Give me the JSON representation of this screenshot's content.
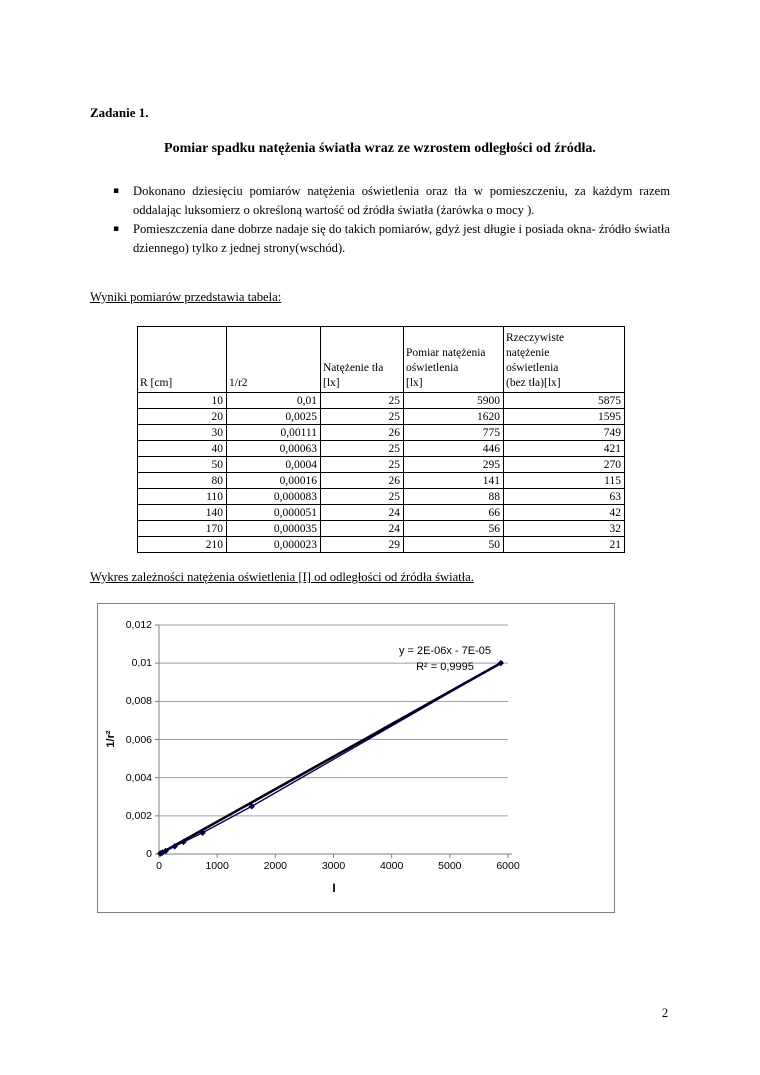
{
  "document": {
    "task_label": "Zadanie 1.",
    "title": "Pomiar spadku natężenia światła wraz ze wzrostem odległości od źródła.",
    "bullet_marker": "▪",
    "bullets": [
      "Dokonano dziesięciu pomiarów natężenia oświetlenia oraz tła w pomieszczeniu, za każdym razem oddalając luksomierz o określoną wartość od źródła światła (żarówka o mocy  ).",
      "Pomieszczenia dane dobrze nadaje się do takich pomiarów, gdyż jest długie i posiada okna- źródło światła dziennego) tylko z jednej strony(wschód)."
    ],
    "table_caption": "Wyniki pomiarów przedstawia tabela:",
    "chart_caption": "Wykres zależności natężenia oświetlenia [I] od odległości od źródła światła.",
    "page_number": "2"
  },
  "table": {
    "headers": [
      "R [cm]",
      "1/r2",
      "Natężenie tła\n[lx]",
      "Pomiar natężenia\noświetlenia\n[lx]",
      "Rzeczywiste\nnatężenie\noświetlenia\n(bez tła)[lx]"
    ],
    "rows": [
      [
        "10",
        "0,01",
        "25",
        "5900",
        "5875"
      ],
      [
        "20",
        "0,0025",
        "25",
        "1620",
        "1595"
      ],
      [
        "30",
        "0,00111",
        "26",
        "775",
        "749"
      ],
      [
        "40",
        "0,00063",
        "25",
        "446",
        "421"
      ],
      [
        "50",
        "0,0004",
        "25",
        "295",
        "270"
      ],
      [
        "80",
        "0,00016",
        "26",
        "141",
        "115"
      ],
      [
        "110",
        "0,000083",
        "25",
        "88",
        "63"
      ],
      [
        "140",
        "0,000051",
        "24",
        "66",
        "42"
      ],
      [
        "170",
        "0,000035",
        "24",
        "56",
        "32"
      ],
      [
        "210",
        "0,000023",
        "29",
        "50",
        "21"
      ]
    ]
  },
  "chart_data": {
    "type": "scatter",
    "points": [
      [
        21,
        2.3e-05
      ],
      [
        32,
        3.5e-05
      ],
      [
        42,
        5.1e-05
      ],
      [
        63,
        8.3e-05
      ],
      [
        115,
        0.00016
      ],
      [
        270,
        0.0004
      ],
      [
        421,
        0.00063
      ],
      [
        749,
        0.00111
      ],
      [
        1595,
        0.0025
      ],
      [
        5875,
        0.01
      ]
    ],
    "xlabel": "I",
    "ylabel": "1/r²",
    "xlim": [
      0,
      6000
    ],
    "ylim": [
      0,
      0.012
    ],
    "x_tick_values": [
      0,
      1000,
      2000,
      3000,
      4000,
      5000,
      6000
    ],
    "x_tick_labels": [
      "0",
      "1000",
      "2000",
      "3000",
      "4000",
      "5000",
      "6000"
    ],
    "y_tick_values": [
      0,
      0.002,
      0.004,
      0.006,
      0.008,
      0.01,
      0.012
    ],
    "y_tick_labels": [
      "0",
      "0,002",
      "0,004",
      "0,006",
      "0,008",
      "0,01",
      "0,012"
    ],
    "grid": true,
    "legend_position": "none",
    "trendline": {
      "equation": "y = 2E-06x - 7E-05",
      "r_squared": "R² = 0,9995"
    },
    "colors": {
      "marker": "#000040",
      "series_line": "#000066",
      "trend_line": "#000000",
      "gridline": "#a0a0a0",
      "axis": "#808080"
    }
  }
}
